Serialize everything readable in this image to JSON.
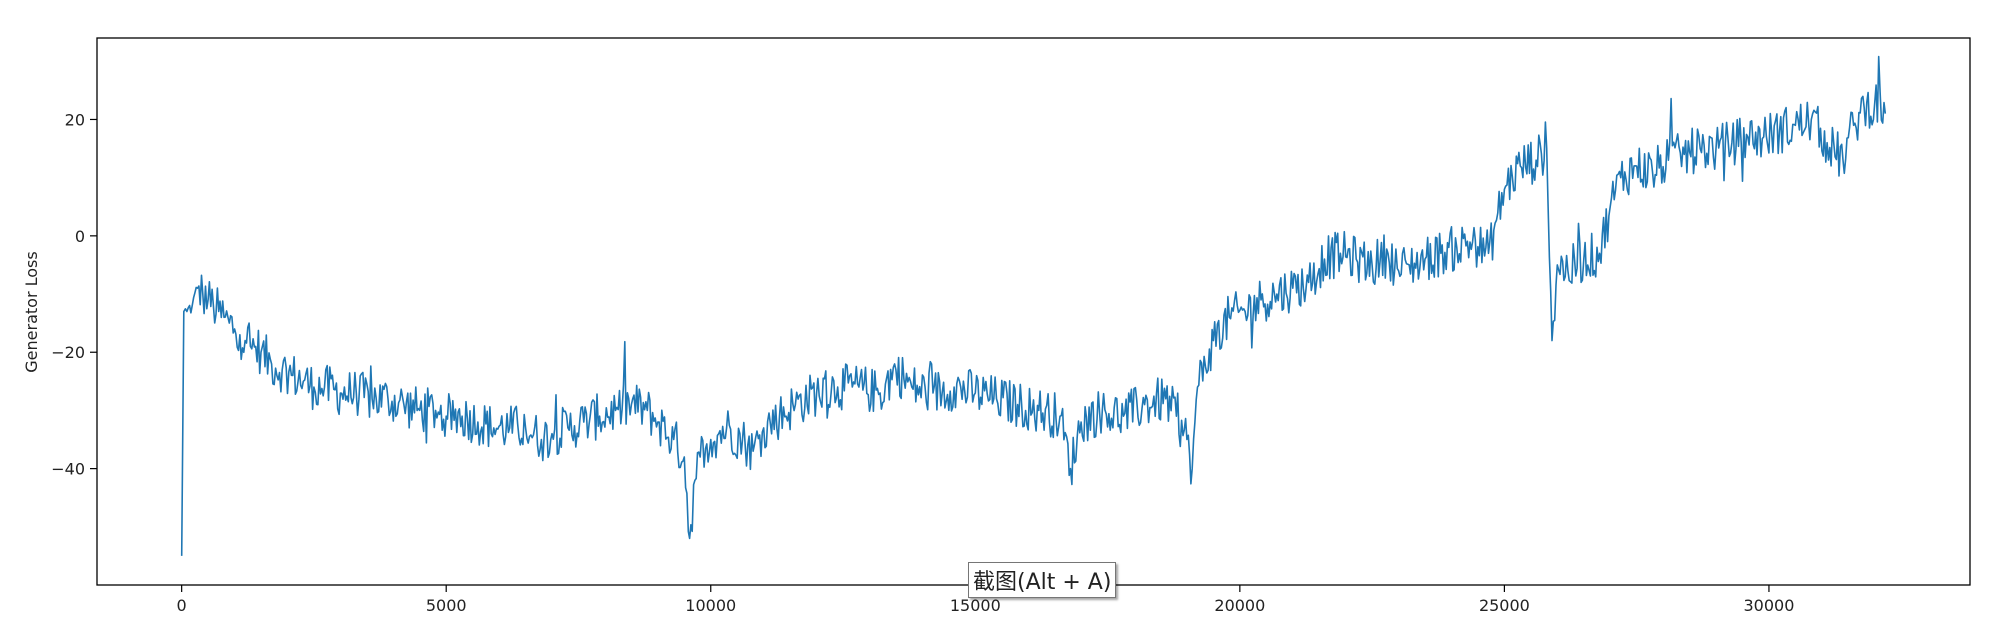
{
  "chart_data": {
    "type": "line",
    "title": "",
    "xlabel": "",
    "ylabel": "Generator Loss",
    "xlim": [
      -1600,
      33800
    ],
    "ylim": [
      -60,
      34
    ],
    "grid": false,
    "x_ticks": [
      0,
      5000,
      10000,
      15000,
      20000,
      25000,
      30000
    ],
    "y_ticks": [
      20,
      0,
      -20,
      -40
    ],
    "y_tick_labels": [
      "20",
      "0",
      "−20",
      "−40"
    ],
    "series": [
      {
        "color": "#1f77b4",
        "x": [
          0,
          40,
          100,
          200,
          300,
          400,
          500,
          600,
          700,
          800,
          900,
          1000,
          1100,
          1200,
          1300,
          1400,
          1500,
          1700,
          1900,
          2100,
          2300,
          2500,
          2700,
          3000,
          3300,
          3600,
          3900,
          4200,
          4500,
          4800,
          5000,
          5300,
          5600,
          5900,
          6200,
          6500,
          6800,
          7000,
          7300,
          7600,
          7900,
          8200,
          8500,
          8800,
          9000,
          9300,
          9500,
          9600,
          9700,
          9800,
          10000,
          10300,
          10600,
          10800,
          11000,
          11300,
          11600,
          12000,
          12400,
          12800,
          13200,
          13500,
          13800,
          14200,
          14600,
          15000,
          15400,
          15800,
          16200,
          16600,
          16800,
          17000,
          17400,
          17800,
          18200,
          18600,
          18800,
          19000,
          19100,
          19200,
          19500,
          19800,
          20100,
          20400,
          20700,
          21000,
          21300,
          21600,
          21900,
          22200,
          22500,
          22800,
          23000,
          23200,
          23500,
          23800,
          24100,
          24400,
          24700,
          25000,
          25300,
          25600,
          25800,
          25900,
          26000,
          26200,
          26500,
          26800,
          27000,
          27200,
          27500,
          27800,
          28100,
          28400,
          28700,
          29000,
          29300,
          29600,
          29900,
          30200,
          30500,
          30800,
          31100,
          31400,
          31600,
          31800,
          32000,
          32200
        ],
        "y": [
          -55,
          -13,
          -13,
          -12,
          -9,
          -10,
          -11,
          -12,
          -13,
          -14,
          -15,
          -16,
          -17,
          -18,
          -19,
          -19,
          -20,
          -22,
          -23,
          -24,
          -25,
          -26,
          -26,
          -27,
          -27,
          -28,
          -28,
          -29,
          -30,
          -30,
          -31,
          -31,
          -32,
          -33,
          -33,
          -33,
          -35,
          -34,
          -33,
          -32,
          -31,
          -30,
          -29,
          -30,
          -32,
          -35,
          -38,
          -52,
          -42,
          -38,
          -35,
          -33,
          -35,
          -37,
          -33,
          -31,
          -29,
          -27,
          -26,
          -26,
          -27,
          -23,
          -26,
          -27,
          -26,
          -27,
          -28,
          -29,
          -30,
          -31,
          -40,
          -32,
          -30,
          -31,
          -29,
          -28,
          -31,
          -35,
          -40,
          -26,
          -18,
          -14,
          -13,
          -11,
          -10,
          -9,
          -8,
          -4,
          -3,
          -4,
          -5,
          -3,
          -6,
          -5,
          -4,
          -3,
          -2,
          -1,
          -3,
          8,
          12,
          13,
          15,
          -18,
          -5,
          -6,
          -4,
          -3,
          5,
          10,
          12,
          11,
          13,
          14,
          15,
          15,
          16,
          17,
          17,
          18,
          19,
          20,
          16,
          13,
          19,
          22,
          23,
          21
        ]
      }
    ]
  },
  "tooltip": {
    "text": "截图(Alt + A)"
  }
}
